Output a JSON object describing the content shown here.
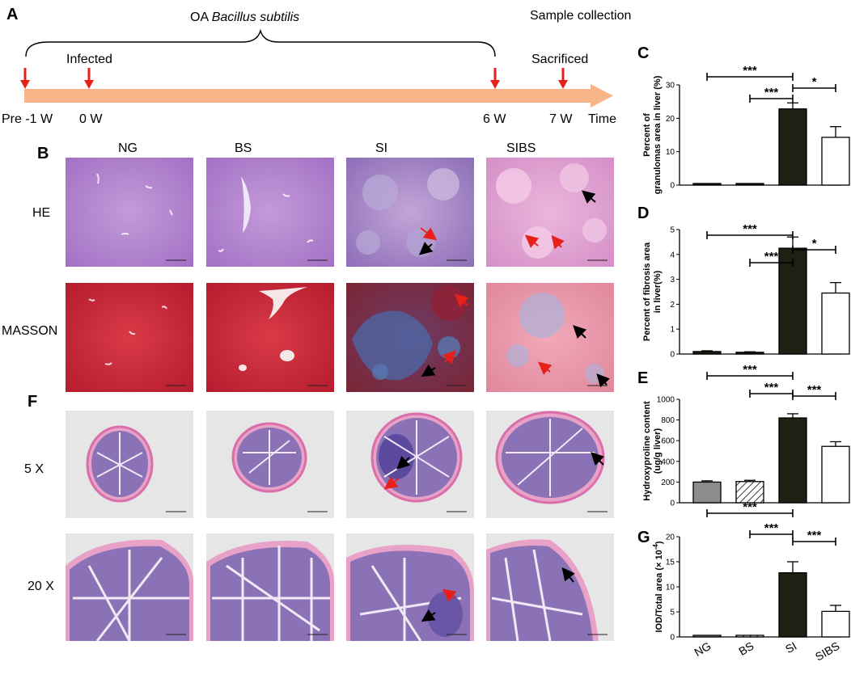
{
  "panels": {
    "A": {
      "letter": "A",
      "treatment_prefix": "OA ",
      "treatment_species": "Bacillus subtilis",
      "sample_collection": "Sample collection",
      "infected": "Infected",
      "sacrificed": "Sacrificed",
      "time_label": "Time",
      "ticks": [
        "Pre -1 W",
        "0 W",
        "6 W",
        "7 W"
      ],
      "colors": {
        "timeline": "#f9b48a",
        "marker": "#e8201a"
      }
    },
    "B": {
      "letter": "B",
      "columns": [
        "NG",
        "BS",
        "SI",
        "SIBS"
      ],
      "rows": [
        "HE",
        "MASSON"
      ]
    },
    "F": {
      "letter": "F",
      "rows": [
        "5 X",
        "20 X"
      ]
    }
  },
  "colors": {
    "he_bg": "#b27fcf",
    "masson_bg": "#c6233a",
    "bar_dark": "#1f1f14",
    "bar_gray": "#8c8c8c",
    "arrow_red": "#e8201a",
    "arrow_black": "#000000"
  },
  "chart_data": [
    {
      "panel": "C",
      "type": "bar",
      "categories": [
        "NG",
        "BS",
        "SI",
        "SIBS"
      ],
      "values": [
        0,
        0,
        22.8,
        14.3
      ],
      "errors": [
        0,
        0,
        1.8,
        3.2
      ],
      "ylabel": [
        "Percent of",
        "granulomas area in liver (%)"
      ],
      "ylim": [
        0,
        30
      ],
      "yticks": [
        "0",
        "10",
        "20",
        "30"
      ],
      "significance": [
        {
          "from": "NG",
          "to": "SI",
          "label": "***"
        },
        {
          "from": "BS",
          "to": "SI",
          "label": "***"
        },
        {
          "from": "SI",
          "to": "SIBS",
          "label": "*"
        }
      ]
    },
    {
      "panel": "D",
      "type": "bar",
      "categories": [
        "NG",
        "BS",
        "SI",
        "SIBS"
      ],
      "values": [
        0.1,
        0.07,
        4.25,
        2.45
      ],
      "errors": [
        0.03,
        0.02,
        0.45,
        0.42
      ],
      "ylabel": [
        "Percent of fibrosis area",
        "in liver(%)"
      ],
      "ylim": [
        0,
        5
      ],
      "yticks": [
        "0",
        "1",
        "2",
        "3",
        "4",
        "5"
      ],
      "significance": [
        {
          "from": "NG",
          "to": "SI",
          "label": "***"
        },
        {
          "from": "BS",
          "to": "SI",
          "label": "***"
        },
        {
          "from": "SI",
          "to": "SIBS",
          "label": "*"
        }
      ]
    },
    {
      "panel": "E",
      "type": "bar",
      "categories": [
        "NG",
        "BS",
        "SI",
        "SIBS"
      ],
      "values": [
        200,
        205,
        820,
        545
      ],
      "errors": [
        12,
        12,
        40,
        45
      ],
      "ylabel": [
        "Hydroxyproline content",
        "(ug/g liver)"
      ],
      "ylim": [
        0,
        1000
      ],
      "yticks": [
        "0",
        "200",
        "400",
        "600",
        "800",
        "1000"
      ],
      "significance": [
        {
          "from": "BS",
          "to": "SI",
          "label": "***"
        },
        {
          "from": "NG",
          "to": "SI",
          "label": "***"
        },
        {
          "from": "SI",
          "to": "SIBS",
          "label": "***"
        }
      ]
    },
    {
      "panel": "G",
      "type": "bar",
      "categories": [
        "NG",
        "BS",
        "SI",
        "SIBS"
      ],
      "values": [
        0.05,
        0.05,
        12.8,
        5.1
      ],
      "errors": [
        0,
        0,
        2.2,
        1.2
      ],
      "ylabel": [
        "IOD/Total area (× 10",
        "-4",
        ")"
      ],
      "ylim": [
        0,
        20
      ],
      "yticks": [
        "0",
        "5",
        "10",
        "15",
        "20"
      ],
      "significance": [
        {
          "from": "BS",
          "to": "SI",
          "label": "***"
        },
        {
          "from": "NG",
          "to": "SI",
          "label": "***"
        },
        {
          "from": "SI",
          "to": "SIBS",
          "label": "***"
        }
      ]
    }
  ]
}
